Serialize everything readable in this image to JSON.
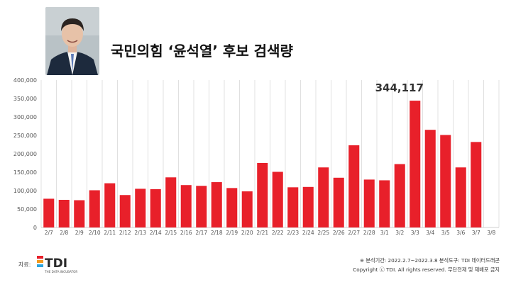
{
  "header": {
    "title": "국민의힘 ‘윤석열’ 후보 검색량"
  },
  "source": {
    "label": "자료:",
    "logo_text": "TDI",
    "logo_sub": "THE DATA INCUBATOR"
  },
  "footer": {
    "line1": "※ 분석기간: 2022.2.7~2022.3.8   분석도구: TDI 데이터드래곤",
    "line2": "Copyright ⓒ TDI. All rights reserved. 무단전재 및 재배포 금지"
  },
  "colors": {
    "bar": "#e8202a",
    "grid": "#d9d9d9",
    "axis_text": "#555555"
  },
  "chart_data": {
    "type": "bar",
    "title": "국민의힘 ‘윤석열’ 후보 검색량",
    "xlabel": "",
    "ylabel": "",
    "ylim": [
      0,
      400000
    ],
    "yticks": [
      0,
      50000,
      100000,
      150000,
      200000,
      250000,
      300000,
      350000,
      400000
    ],
    "ytick_labels": [
      "0",
      "50,000",
      "100,000",
      "150,000",
      "200,000",
      "250,000",
      "300,000",
      "350,000",
      "400,000"
    ],
    "grid": "vertical",
    "categories": [
      "2/7",
      "2/8",
      "2/9",
      "2/10",
      "2/11",
      "2/12",
      "2/13",
      "2/14",
      "2/15",
      "2/16",
      "2/17",
      "2/18",
      "2/19",
      "2/20",
      "2/21",
      "2/22",
      "2/23",
      "2/24",
      "2/25",
      "2/26",
      "2/27",
      "2/28",
      "3/1",
      "3/2",
      "3/3",
      "3/4",
      "3/5",
      "3/6",
      "3/7",
      "3/8"
    ],
    "values": [
      78000,
      75000,
      74000,
      101000,
      120000,
      88000,
      105000,
      104000,
      136000,
      115000,
      113000,
      123000,
      107000,
      98000,
      175000,
      151000,
      109000,
      110000,
      163000,
      135000,
      223000,
      130000,
      128000,
      172000,
      344117,
      265000,
      251000,
      163000,
      232000,
      null
    ],
    "annotations": [
      {
        "category": "3/3",
        "text": "344,117"
      }
    ]
  }
}
